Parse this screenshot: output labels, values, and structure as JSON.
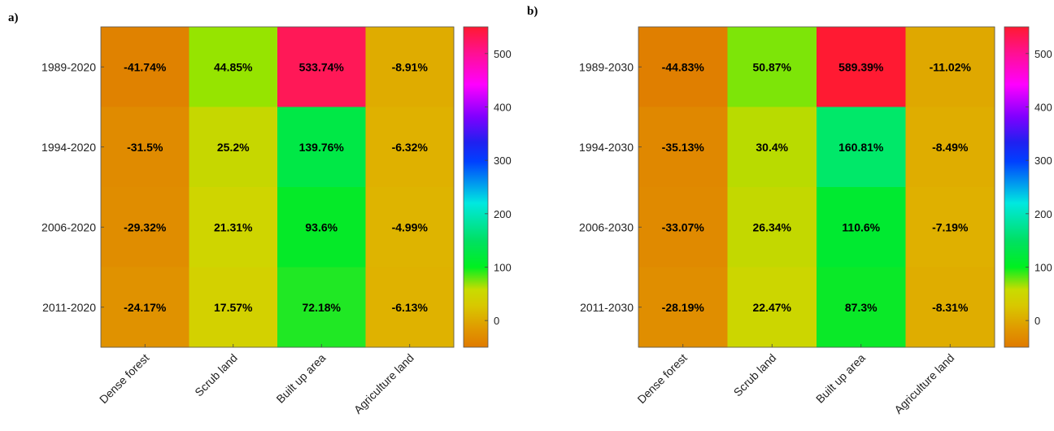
{
  "chart_data": [
    {
      "type": "heatmap",
      "panel_label": "a)",
      "rows": [
        "1989-2020",
        "1994-2020",
        "2006-2020",
        "2011-2020"
      ],
      "columns": [
        "Dense forest",
        "Scrub land",
        "Built up area",
        "Agriculture land"
      ],
      "values": [
        [
          -41.74,
          44.85,
          533.74,
          -8.91
        ],
        [
          -31.5,
          25.2,
          139.76,
          -6.32
        ],
        [
          -29.32,
          21.31,
          93.6,
          -4.99
        ],
        [
          -24.17,
          17.57,
          72.18,
          -6.13
        ]
      ],
      "cell_labels": [
        [
          "-41.74%",
          "44.85%",
          "533.74%",
          "-8.91%"
        ],
        [
          "-31.5%",
          "25.2%",
          "139.76%",
          "-6.32%"
        ],
        [
          "-29.32%",
          "21.31%",
          "93.6%",
          "-4.99%"
        ],
        [
          "-24.17%",
          "17.57%",
          "72.18%",
          "-6.13%"
        ]
      ],
      "colorbar": {
        "range": [
          -50,
          550
        ],
        "ticks": [
          "0",
          "100",
          "200",
          "300",
          "400",
          "500"
        ],
        "tick_values": [
          0,
          100,
          200,
          300,
          400,
          500
        ]
      }
    },
    {
      "type": "heatmap",
      "panel_label": "b)",
      "rows": [
        "1989-2030",
        "1994-2030",
        "2006-2030",
        "2011-2030"
      ],
      "columns": [
        "Dense forest",
        "Scrub land",
        "Built up area",
        "Agriculture land"
      ],
      "values": [
        [
          -44.83,
          50.87,
          589.39,
          -11.02
        ],
        [
          -35.13,
          30.4,
          160.81,
          -8.49
        ],
        [
          -33.07,
          26.34,
          110.6,
          -7.19
        ],
        [
          -28.19,
          22.47,
          87.3,
          -8.31
        ]
      ],
      "cell_labels": [
        [
          "-44.83%",
          "50.87%",
          "589.39%",
          "-11.02%"
        ],
        [
          "-35.13%",
          "30.4%",
          "160.81%",
          "-8.49%"
        ],
        [
          "-33.07%",
          "26.34%",
          "110.6%",
          "-7.19%"
        ],
        [
          "-28.19%",
          "22.47%",
          "87.3%",
          "-8.31%"
        ]
      ],
      "colorbar": {
        "range": [
          -50,
          550
        ],
        "ticks": [
          "0",
          "100",
          "200",
          "300",
          "400",
          "500"
        ],
        "tick_values": [
          0,
          100,
          200,
          300,
          400,
          500
        ]
      }
    }
  ]
}
